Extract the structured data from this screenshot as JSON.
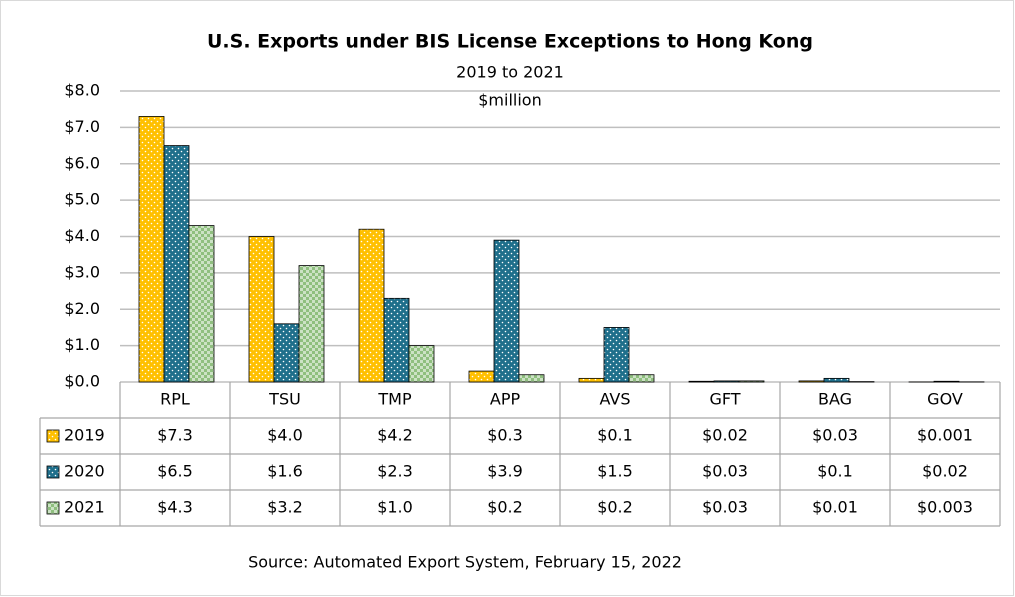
{
  "chart_data": {
    "type": "bar",
    "title": "U.S. Exports under BIS License Exceptions to Hong Kong",
    "subtitle": "2019 to 2021",
    "unit_label": "$million",
    "source": "Source: Automated Export System, February 15, 2022",
    "categories": [
      "RPL",
      "TSU",
      "TMP",
      "APP",
      "AVS",
      "GFT",
      "BAG",
      "GOV"
    ],
    "series": [
      {
        "name": "2019",
        "color": "#ffc000",
        "values": [
          7.3,
          4.0,
          4.2,
          0.3,
          0.1,
          0.02,
          0.03,
          0.001
        ],
        "value_labels": [
          "$7.3",
          "$4.0",
          "$4.2",
          "$0.3",
          "$0.1",
          "$0.02",
          "$0.03",
          "$0.001"
        ]
      },
      {
        "name": "2020",
        "color": "#1f6f8b",
        "values": [
          6.5,
          1.6,
          2.3,
          3.9,
          1.5,
          0.03,
          0.1,
          0.02
        ],
        "value_labels": [
          "$6.5",
          "$1.6",
          "$2.3",
          "$3.9",
          "$1.5",
          "$0.03",
          "$0.1",
          "$0.02"
        ]
      },
      {
        "name": "2021",
        "color": "#8fbf7f",
        "values": [
          4.3,
          3.2,
          1.0,
          0.2,
          0.2,
          0.03,
          0.01,
          0.003
        ],
        "value_labels": [
          "$4.3",
          "$3.2",
          "$1.0",
          "$0.2",
          "$0.2",
          "$0.03",
          "$0.01",
          "$0.003"
        ]
      }
    ],
    "ylim": [
      0,
      8
    ],
    "yticks": [
      {
        "value": 0,
        "label": "$0.0"
      },
      {
        "value": 1,
        "label": "$1.0"
      },
      {
        "value": 2,
        "label": "$2.0"
      },
      {
        "value": 3,
        "label": "$3.0"
      },
      {
        "value": 4,
        "label": "$4.0"
      },
      {
        "value": 5,
        "label": "$5.0"
      },
      {
        "value": 6,
        "label": "$6.0"
      },
      {
        "value": 7,
        "label": "$7.0"
      },
      {
        "value": 8,
        "label": "$8.0"
      }
    ],
    "grid": true,
    "legend": "table"
  }
}
